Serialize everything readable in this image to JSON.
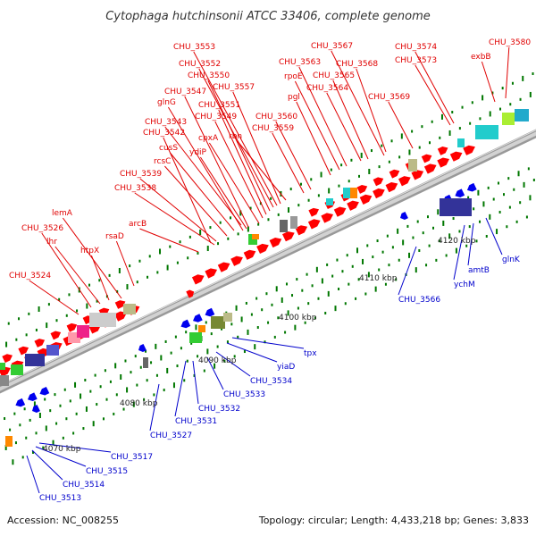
{
  "title": "Cytophaga hutchinsonii ATCC 33406, complete genome",
  "footer": {
    "accession": "Accession: NC_008255",
    "summary": "Topology: circular; Length: 4,433,218 bp; Genes: 3,833"
  },
  "colors": {
    "forward_label": "#e00000",
    "reverse_label": "#0000cc",
    "forward_gene": "#ff0000",
    "reverse_gene": "#0000ee",
    "backbone": "#b4b4b4",
    "tick": "#007700"
  },
  "ticks": [
    "4070 kbp",
    "4080 kbp",
    "4090 kbp",
    "4100 kbp",
    "4110 kbp",
    "4120 kbp"
  ],
  "forward_genes": [
    "CHU_3524",
    "CHU_3526",
    "lhr",
    "CHU_3538",
    "CHU_3539",
    "rcsC",
    "cusS",
    "CHU_3542",
    "CHU_3543",
    "lemA",
    "htpX",
    "rsaD",
    "arcB",
    "ydiP",
    "cpxA",
    "CHU_3549",
    "CHU_3551",
    "glnG",
    "CHU_3547",
    "CHU_3550",
    "CHU_3552",
    "CHU_3553",
    "CHU_3557",
    "rbn",
    "CHU_3559",
    "CHU_3560",
    "pgl",
    "rpoE",
    "CHU_3563",
    "CHU_3564",
    "CHU_3565",
    "CHU_3567",
    "CHU_3568",
    "CHU_3569",
    "CHU_3573",
    "CHU_3574",
    "exbB",
    "CHU_3580"
  ],
  "reverse_genes": [
    "CHU_3513",
    "CHU_3514",
    "CHU_3515",
    "CHU_3517",
    "CHU_3527",
    "CHU_3531",
    "CHU_3532",
    "CHU_3533",
    "CHU_3534",
    "yiaD",
    "tpx",
    "CHU_3566",
    "ychM",
    "amtB",
    "glnK"
  ]
}
